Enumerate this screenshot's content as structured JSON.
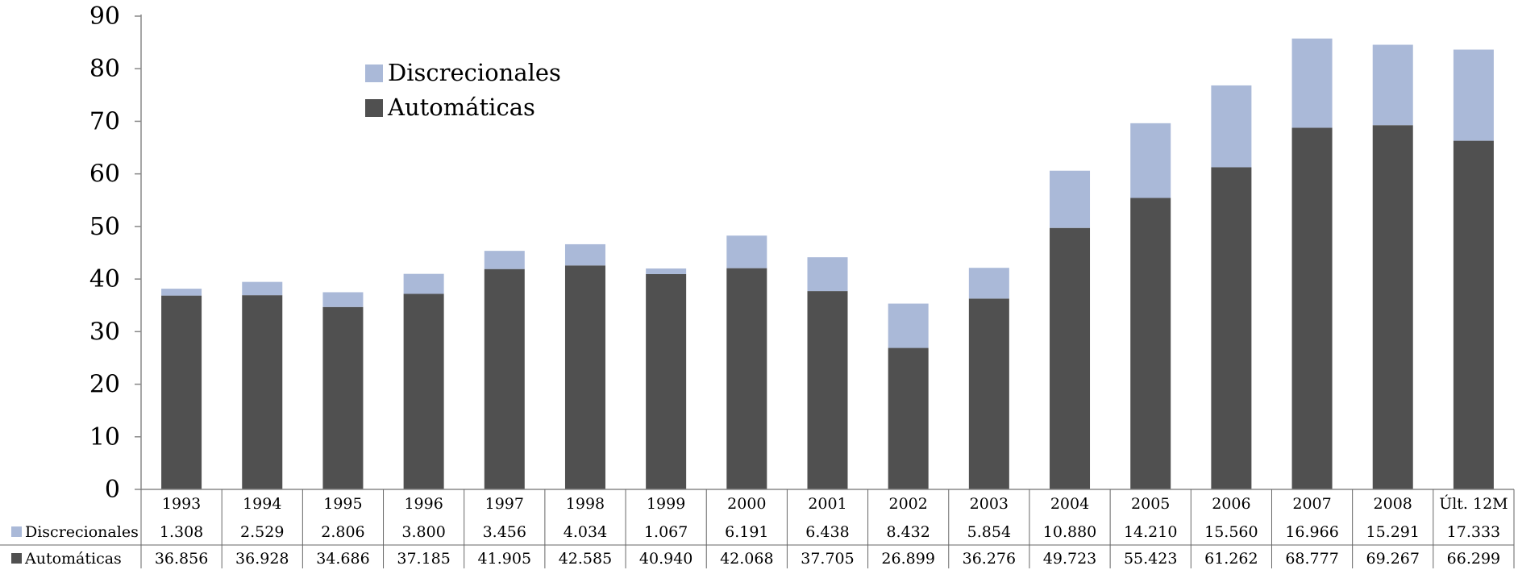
{
  "chart_data": {
    "type": "bar",
    "stacked": true,
    "categories": [
      "1993",
      "1994",
      "1995",
      "1996",
      "1997",
      "1998",
      "1999",
      "2000",
      "2001",
      "2002",
      "2003",
      "2004",
      "2005",
      "2006",
      "2007",
      "2008",
      "Últ. 12M"
    ],
    "series": [
      {
        "name": "Automáticas",
        "color": "#505050",
        "values": [
          36.856,
          36.928,
          34.686,
          37.185,
          41.905,
          42.585,
          40.94,
          42.068,
          37.705,
          26.899,
          36.276,
          49.723,
          55.423,
          61.262,
          68.777,
          69.267,
          66.299
        ],
        "labels": [
          "36.856",
          "36.928",
          "34.686",
          "37.185",
          "41.905",
          "42.585",
          "40.940",
          "42.068",
          "37.705",
          "26.899",
          "36.276",
          "49.723",
          "55.423",
          "61.262",
          "68.777",
          "69.267",
          "66.299"
        ]
      },
      {
        "name": "Discrecionales",
        "color": "#aab9d8",
        "values": [
          1.308,
          2.529,
          2.806,
          3.8,
          3.456,
          4.034,
          1.067,
          6.191,
          6.438,
          8.432,
          5.854,
          10.88,
          14.21,
          15.56,
          16.966,
          15.291,
          17.333
        ],
        "labels": [
          "1.308",
          "2.529",
          "2.806",
          "3.800",
          "3.456",
          "4.034",
          "1.067",
          "6.191",
          "6.438",
          "8.432",
          "5.854",
          "10.880",
          "14.210",
          "15.560",
          "16.966",
          "15.291",
          "17.333"
        ]
      }
    ],
    "ylim": [
      0,
      90
    ],
    "yticks": [
      "0",
      "10",
      "20",
      "30",
      "40",
      "50",
      "60",
      "70",
      "80",
      "90"
    ],
    "legend": {
      "placement": "top-left",
      "order": [
        "Discrecionales",
        "Automáticas"
      ]
    },
    "data_table": {
      "rows": [
        "Discrecionales",
        "Automáticas"
      ]
    },
    "grid": false
  }
}
